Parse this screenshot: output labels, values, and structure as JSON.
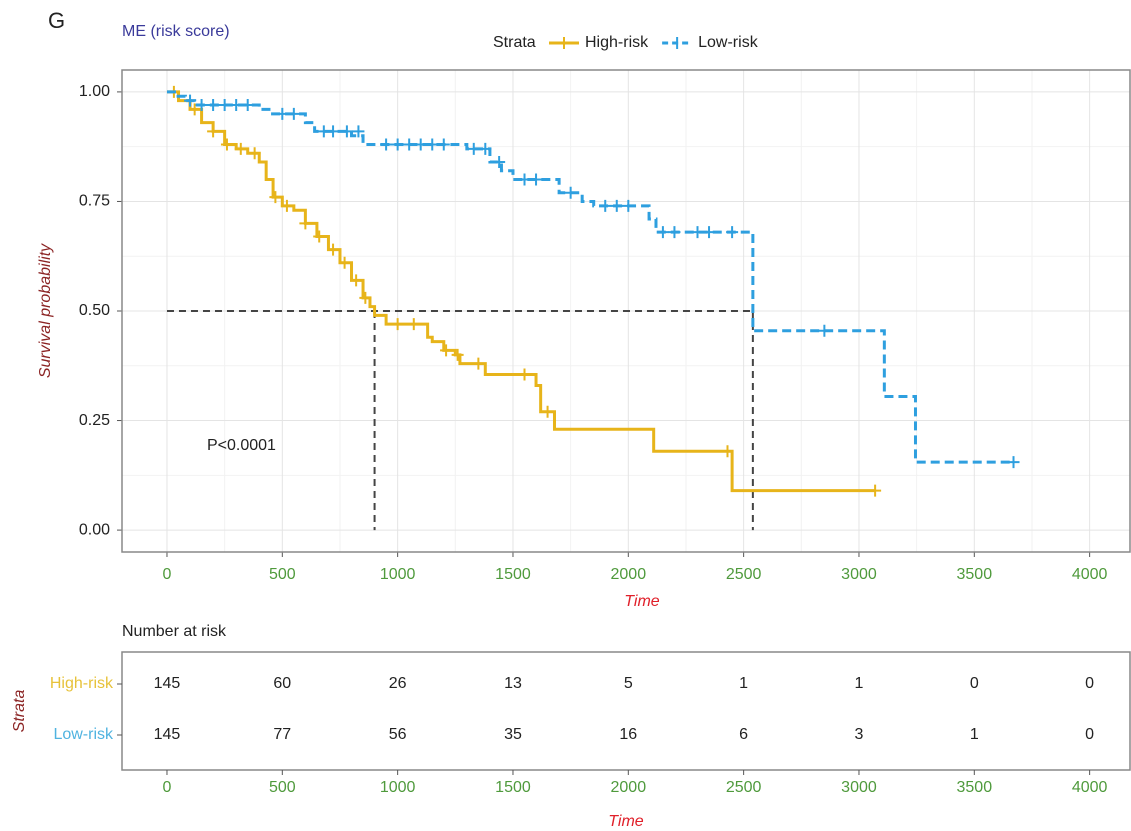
{
  "chart_data": [
    {
      "type": "step",
      "panel_label": "G",
      "subtitle": "ME (risk score)",
      "legend_title": "Strata",
      "legend": "top",
      "xlabel": "Time",
      "ylabel": "Survival probability",
      "annotation": "P<0.0001",
      "xlim": [
        -195,
        4175
      ],
      "ylim": [
        -0.05,
        1.05
      ],
      "xticks": [
        0,
        500,
        1000,
        1500,
        2000,
        2500,
        3000,
        3500,
        4000
      ],
      "yticks": [
        {
          "value": 0,
          "label": "0.00"
        },
        {
          "value": 0.25,
          "label": "0.25"
        },
        {
          "value": 0.5,
          "label": "0.50"
        },
        {
          "value": 0.75,
          "label": "0.75"
        },
        {
          "value": 1,
          "label": "1.00"
        }
      ],
      "grid": true,
      "median": {
        "y": 0.5,
        "x": [
          900,
          2540
        ]
      },
      "series": [
        {
          "name": "High-risk",
          "color": "#e7b41a",
          "dashed": false,
          "x": [
            0,
            50,
            100,
            150,
            200,
            250,
            300,
            350,
            400,
            430,
            460,
            500,
            550,
            600,
            650,
            700,
            750,
            800,
            850,
            880,
            900,
            950,
            1130,
            1150,
            1200,
            1250,
            1270,
            1380,
            1600,
            1620,
            1680,
            2110,
            2450,
            3070
          ],
          "values": [
            1,
            0.98,
            0.96,
            0.93,
            0.91,
            0.88,
            0.87,
            0.86,
            0.84,
            0.8,
            0.76,
            0.74,
            0.73,
            0.7,
            0.67,
            0.64,
            0.61,
            0.57,
            0.53,
            0.51,
            0.49,
            0.47,
            0.44,
            0.43,
            0.41,
            0.4,
            0.38,
            0.355,
            0.33,
            0.27,
            0.23,
            0.18,
            0.09,
            0.09
          ],
          "censor_x": [
            30,
            120,
            200,
            260,
            320,
            380,
            470,
            520,
            600,
            660,
            720,
            770,
            820,
            860,
            1000,
            1070,
            1210,
            1260,
            1350,
            1550,
            1650,
            2430,
            3070
          ],
          "censor_values": [
            1,
            0.96,
            0.91,
            0.88,
            0.87,
            0.86,
            0.76,
            0.74,
            0.7,
            0.67,
            0.64,
            0.61,
            0.57,
            0.53,
            0.47,
            0.47,
            0.41,
            0.4,
            0.38,
            0.355,
            0.27,
            0.18,
            0.09
          ]
        },
        {
          "name": "Low-risk",
          "color": "#2e9fdf",
          "dashed": true,
          "x": [
            0,
            40,
            80,
            120,
            400,
            450,
            600,
            640,
            800,
            850,
            1300,
            1400,
            1450,
            1500,
            1700,
            1800,
            1850,
            2090,
            2120,
            2540,
            3110,
            3245,
            3670
          ],
          "values": [
            1,
            0.99,
            0.98,
            0.97,
            0.96,
            0.95,
            0.93,
            0.91,
            0.9,
            0.88,
            0.87,
            0.84,
            0.82,
            0.8,
            0.77,
            0.75,
            0.74,
            0.71,
            0.68,
            0.455,
            0.305,
            0.155,
            0.155
          ],
          "censor_x": [
            100,
            150,
            200,
            250,
            300,
            350,
            500,
            550,
            680,
            720,
            780,
            830,
            950,
            1000,
            1050,
            1100,
            1150,
            1200,
            1330,
            1380,
            1440,
            1550,
            1600,
            1750,
            1900,
            1950,
            2000,
            2150,
            2200,
            2300,
            2350,
            2450,
            2850,
            3670
          ],
          "censor_values": [
            0.98,
            0.97,
            0.97,
            0.97,
            0.97,
            0.97,
            0.95,
            0.95,
            0.91,
            0.91,
            0.91,
            0.91,
            0.88,
            0.88,
            0.88,
            0.88,
            0.88,
            0.88,
            0.87,
            0.87,
            0.84,
            0.8,
            0.8,
            0.77,
            0.74,
            0.74,
            0.74,
            0.68,
            0.68,
            0.68,
            0.68,
            0.68,
            0.455,
            0.155
          ]
        }
      ]
    },
    {
      "type": "risk_table",
      "title": "Number at risk",
      "ylabel": "Strata",
      "xlabel": "Time",
      "xlim": [
        -195,
        4175
      ],
      "xticks": [
        0,
        500,
        1000,
        1500,
        2000,
        2500,
        3000,
        3500,
        4000
      ],
      "x": [
        0,
        500,
        1000,
        1500,
        2000,
        2500,
        3000,
        3500,
        4000
      ],
      "series": [
        {
          "name": "High-risk",
          "color": "#e7c23a",
          "values": [
            145,
            60,
            26,
            13,
            5,
            1,
            1,
            0,
            0
          ]
        },
        {
          "name": "Low-risk",
          "color": "#4fb3e0",
          "values": [
            145,
            77,
            56,
            35,
            16,
            6,
            3,
            1,
            0
          ]
        }
      ]
    }
  ]
}
